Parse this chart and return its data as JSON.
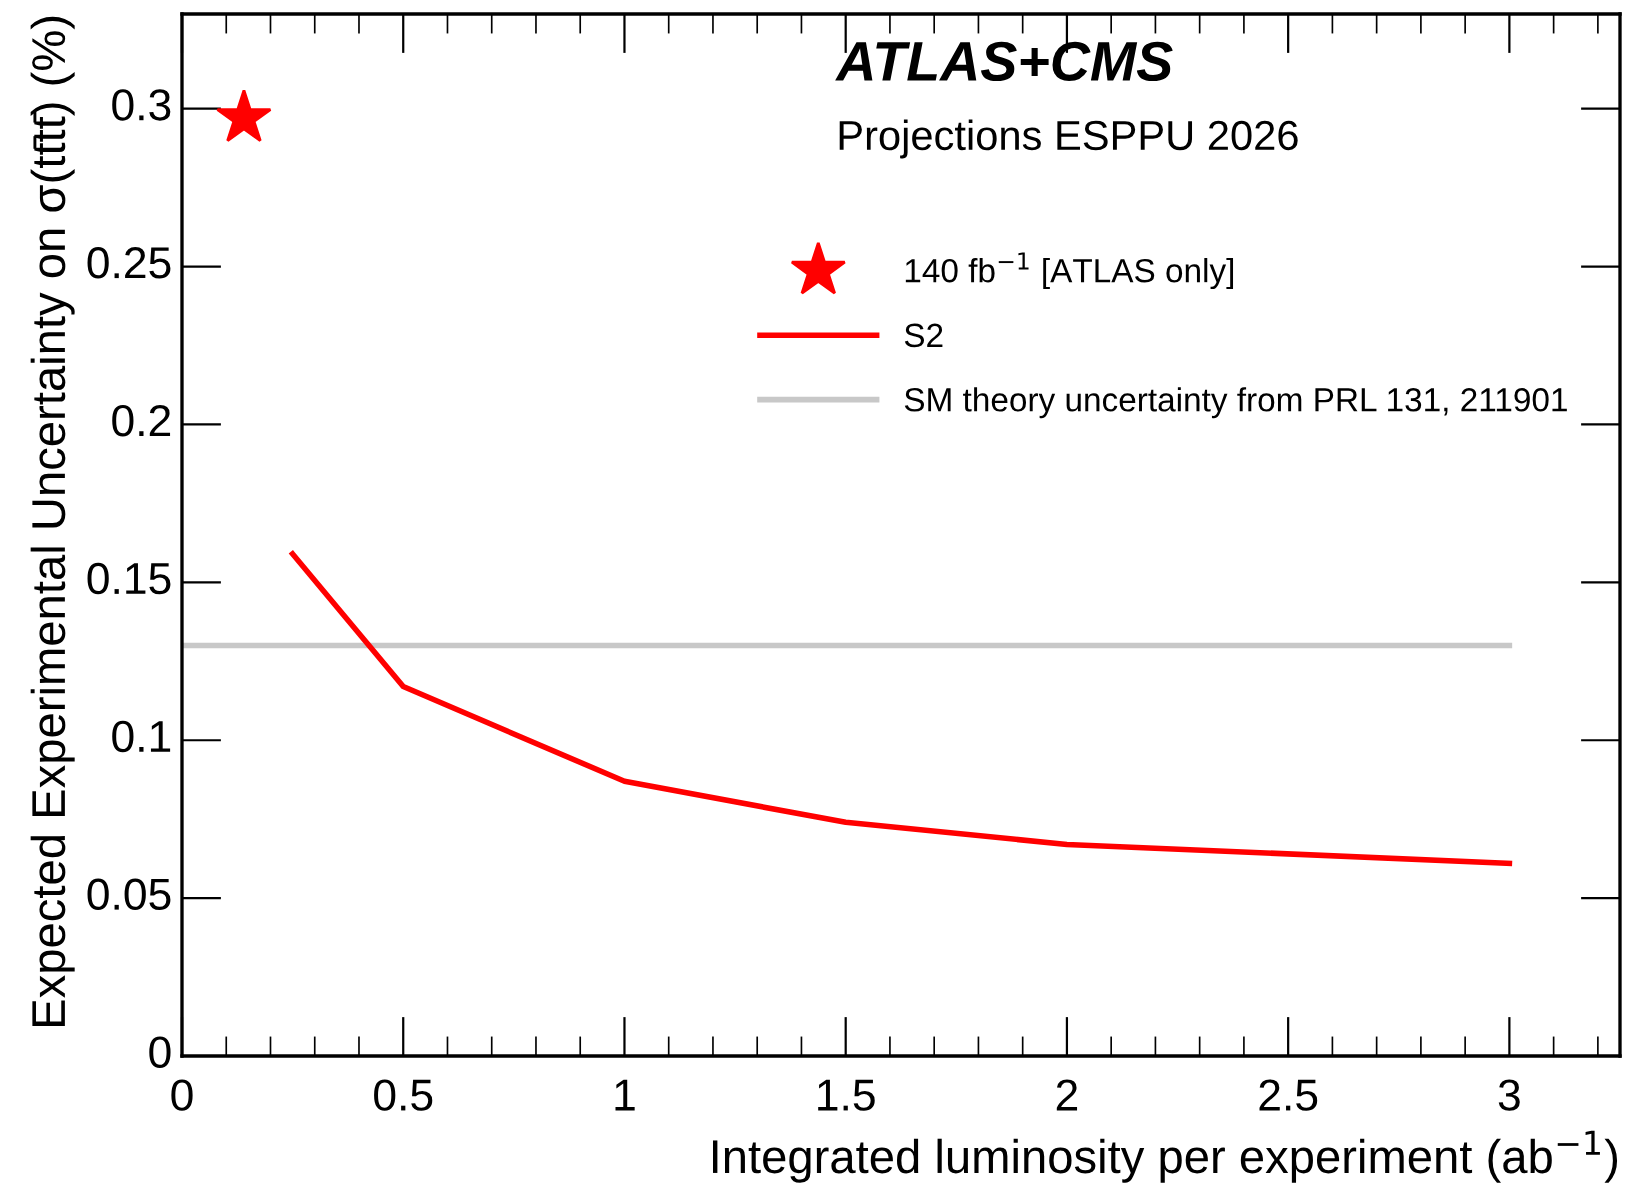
{
  "chart_data": {
    "type": "line",
    "xlabel": "Integrated luminosity per experiment (ab$^{−1}$)",
    "ylabel": "Expected Experimental Uncertainty on σ(tt̄tt̄) (%)",
    "annotations": [
      "ATLAS+CMS",
      "Projections ESPPU 2026"
    ],
    "series": [
      {
        "name": "140 fb$^{−1}$ [ATLAS only]",
        "type": "scatter",
        "marker": "star",
        "color": "#ff0000",
        "x": [
          0.14
        ],
        "values": [
          0.297
        ]
      },
      {
        "name": "S2",
        "type": "line",
        "marker": "none",
        "line_style": "solid",
        "color": "#ff0000",
        "x": [
          0.25,
          0.5,
          1,
          1.5,
          2,
          3
        ],
        "values": [
          0.159,
          0.117,
          0.087,
          0.074,
          0.067,
          0.061
        ]
      }
    ],
    "ref_lines": [
      {
        "axis": "y",
        "value": 0.13,
        "label": "SM theory uncertainty from PRL 131, 211901",
        "color": "#c8c8c8",
        "line_style": "solid"
      }
    ],
    "xlim": [
      0,
      3.25
    ],
    "ylim": [
      0,
      0.33
    ],
    "xticks": [
      0,
      0.5,
      1,
      1.5,
      2,
      2.5,
      3
    ],
    "yticks": [
      0,
      0.05,
      0.1,
      0.15,
      0.2,
      0.25,
      0.3
    ],
    "grid": false,
    "legend": "top right"
  }
}
